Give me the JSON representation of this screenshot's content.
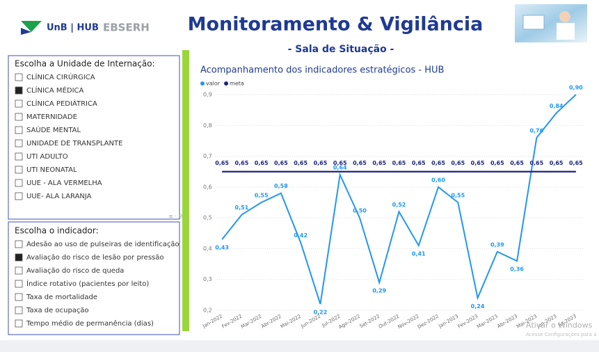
{
  "header": {
    "logo_text": "UnB | HUB",
    "logo_brand": "EBSERH",
    "title": "Monitoramento & Vigilância",
    "subtitle": "- Sala de Situação -"
  },
  "slicers": [
    {
      "title": "Escolha a Unidade de Internação:",
      "items": [
        {
          "label": "CLÍNICA CIRÚRGICA",
          "checked": false
        },
        {
          "label": "CLÍNICA MÉDICA",
          "checked": true
        },
        {
          "label": "CLÍNICA PEDIÁTRICA",
          "checked": false
        },
        {
          "label": "MATERNIDADE",
          "checked": false
        },
        {
          "label": "SAÚDE MENTAL",
          "checked": false
        },
        {
          "label": "UNIDADE DE TRANSPLANTE",
          "checked": false
        },
        {
          "label": "UTI ADULTO",
          "checked": false
        },
        {
          "label": "UTI NEONATAL",
          "checked": false
        },
        {
          "label": "UUE - ALA VERMELHA",
          "checked": false
        },
        {
          "label": "UUE- ALA LARANJA",
          "checked": false
        }
      ]
    },
    {
      "title": "Escolha o indicador:",
      "items": [
        {
          "label": "Adesão ao uso de pulseiras de identificação",
          "checked": false
        },
        {
          "label": "Avaliação do risco de lesão por pressão",
          "checked": true
        },
        {
          "label": "Avaliação do risco de queda",
          "checked": false
        },
        {
          "label": "Índice rotativo (pacientes por leito)",
          "checked": false
        },
        {
          "label": "Taxa de mortalidade",
          "checked": false
        },
        {
          "label": "Taxa de ocupação",
          "checked": false
        },
        {
          "label": "Tempo médio de permanência (dias)",
          "checked": false
        }
      ]
    }
  ],
  "chart_data": {
    "type": "line",
    "title": "Acompanhamento dos indicadores estratégicos - HUB",
    "categories": [
      "Jan-2022",
      "Fev-2022",
      "Mar-2022",
      "Abr-2022",
      "Mai-2022",
      "Jun-2022",
      "Jul-2022",
      "Ago-2022",
      "Set-2022",
      "Out-2022",
      "Nov-2022",
      "Dez-2022",
      "Jan-2023",
      "Fev-2023",
      "Mar-2023",
      "Abr-2023",
      "Mai-2023",
      "Jun-2023",
      "Jul-2023"
    ],
    "series": [
      {
        "name": "valor",
        "color": "#2196f3",
        "values": [
          0.43,
          0.51,
          0.55,
          0.58,
          0.42,
          0.22,
          0.64,
          0.5,
          0.29,
          0.52,
          0.41,
          0.6,
          0.55,
          0.24,
          0.39,
          0.36,
          0.76,
          0.84,
          0.9
        ],
        "value_labels": [
          "0,43",
          "0,51",
          "0,55",
          "0,58",
          "0,42",
          "0,22",
          "0,64",
          "0,50",
          "0,29",
          "0,52",
          "0,41",
          "0,60",
          "0,55",
          "0,24",
          "0,39",
          "0,36",
          "0,76",
          "0,84",
          "0,90"
        ]
      },
      {
        "name": "meta",
        "color": "#1a237e",
        "values": [
          0.65,
          0.65,
          0.65,
          0.65,
          0.65,
          0.65,
          0.65,
          0.65,
          0.65,
          0.65,
          0.65,
          0.65,
          0.65,
          0.65,
          0.65,
          0.65,
          0.65,
          0.65,
          0.65
        ],
        "value_labels": [
          "0,65",
          "0,65",
          "0,65",
          "0,65",
          "0,65",
          "0,65",
          "0,65",
          "0,65",
          "0,65",
          "0,65",
          "0,65",
          "0,65",
          "0,65",
          "0,65",
          "0,65",
          "0,65",
          "0,65",
          "0,65",
          "0,65"
        ]
      }
    ],
    "ylim": [
      0.2,
      0.9
    ],
    "yticks": [
      {
        "value": 0.2,
        "label": "0,2"
      },
      {
        "value": 0.3,
        "label": "0,3"
      },
      {
        "value": 0.4,
        "label": "0,4"
      },
      {
        "value": 0.5,
        "label": "0,5"
      },
      {
        "value": 0.6,
        "label": "0,6"
      },
      {
        "value": 0.7,
        "label": "0,7"
      },
      {
        "value": 0.8,
        "label": "0,8"
      },
      {
        "value": 0.9,
        "label": "0,9"
      }
    ],
    "grid": true
  },
  "watermark": {
    "title": "Ativar o Windows",
    "text": "Acesse Configurações para a"
  }
}
